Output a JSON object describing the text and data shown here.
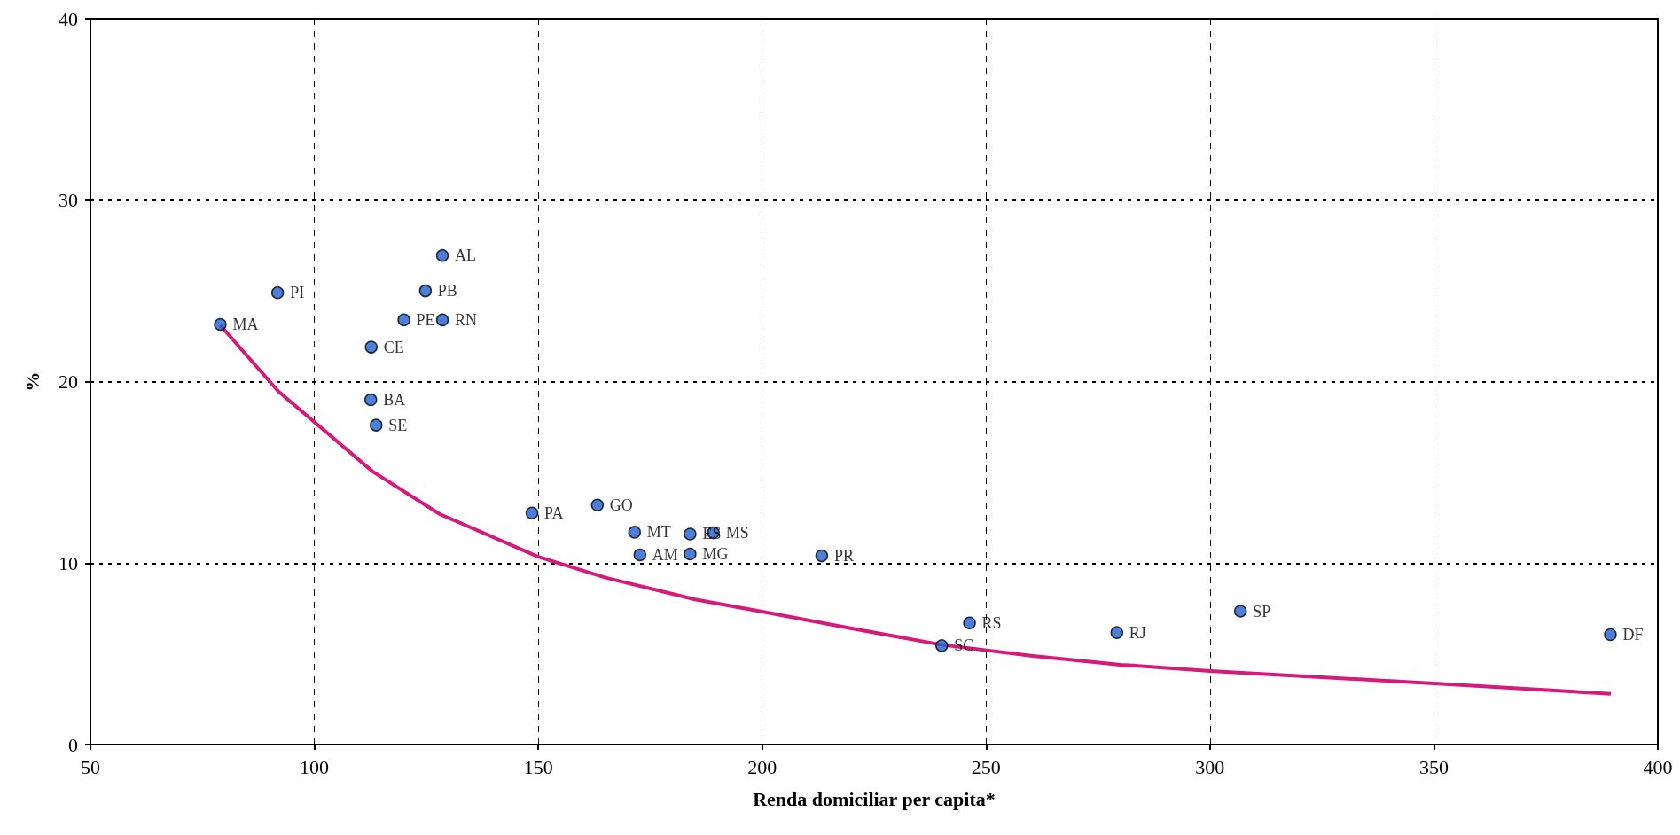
{
  "chart_data": {
    "type": "scatter",
    "xlabel": "Renda domiciliar per capita*",
    "ylabel": "%",
    "xlim": [
      50,
      400
    ],
    "xticks": [
      50,
      100,
      150,
      200,
      250,
      300,
      350,
      400
    ],
    "ylim": [
      0,
      40
    ],
    "yticks": [
      0,
      10,
      20,
      30,
      40
    ],
    "grid": true,
    "series": [
      {
        "color": "#1f5fd0",
        "marker": "circle",
        "x": [
          79,
          91.8,
          112.7,
          112.6,
          113.8,
          120,
          128.6,
          124.8,
          128.6,
          148.6,
          163.2,
          171.5,
          172.7,
          183.9,
          189.1,
          183.9,
          213.3,
          246.3,
          240.1,
          279.2,
          306.8,
          389.4
        ],
        "values": [
          23.15,
          24.9,
          21.9,
          19,
          17.6,
          23.4,
          26.95,
          25,
          23.4,
          12.76,
          13.2,
          11.7,
          10.45,
          11.6,
          11.67,
          10.5,
          10.4,
          6.7,
          5.45,
          6.17,
          7.35,
          6.06
        ]
      },
      {
        "type": "line",
        "color": "#d6197a",
        "marker": "none",
        "x": [
          79,
          92,
          113,
          128,
          150,
          165,
          185,
          200,
          220,
          240,
          260,
          280,
          300,
          350,
          389.5
        ],
        "values": [
          23.1,
          19.45,
          15.05,
          12.7,
          10.35,
          9.2,
          8,
          7.33,
          6.4,
          5.5,
          4.9,
          4.4,
          4.05,
          3.37,
          2.8
        ]
      }
    ],
    "annotations": [
      {
        "text": "MA",
        "x": 79,
        "y": 23.15
      },
      {
        "text": "PI",
        "x": 91.8,
        "y": 24.9
      },
      {
        "text": "CE",
        "x": 112.7,
        "y": 21.9
      },
      {
        "text": "BA",
        "x": 112.6,
        "y": 19
      },
      {
        "text": "SE",
        "x": 113.8,
        "y": 17.6
      },
      {
        "text": "PE",
        "x": 120,
        "y": 23.4
      },
      {
        "text": "AL",
        "x": 128.6,
        "y": 26.95
      },
      {
        "text": "PB",
        "x": 124.8,
        "y": 25
      },
      {
        "text": "RN",
        "x": 128.6,
        "y": 23.4
      },
      {
        "text": "PA",
        "x": 148.6,
        "y": 12.76
      },
      {
        "text": "GO",
        "x": 163.2,
        "y": 13.2
      },
      {
        "text": "MT",
        "x": 171.5,
        "y": 11.7
      },
      {
        "text": "AM",
        "x": 172.7,
        "y": 10.45
      },
      {
        "text": "ES",
        "x": 183.9,
        "y": 11.6
      },
      {
        "text": "MS",
        "x": 189.1,
        "y": 11.67
      },
      {
        "text": "MG",
        "x": 183.9,
        "y": 10.5
      },
      {
        "text": "PR",
        "x": 213.3,
        "y": 10.4
      },
      {
        "text": "RS",
        "x": 246.3,
        "y": 6.7
      },
      {
        "text": "SC",
        "x": 240.1,
        "y": 5.45
      },
      {
        "text": "RJ",
        "x": 279.2,
        "y": 6.17
      },
      {
        "text": "SP",
        "x": 306.8,
        "y": 7.35
      },
      {
        "text": "DF",
        "x": 389.4,
        "y": 6.06
      }
    ]
  }
}
